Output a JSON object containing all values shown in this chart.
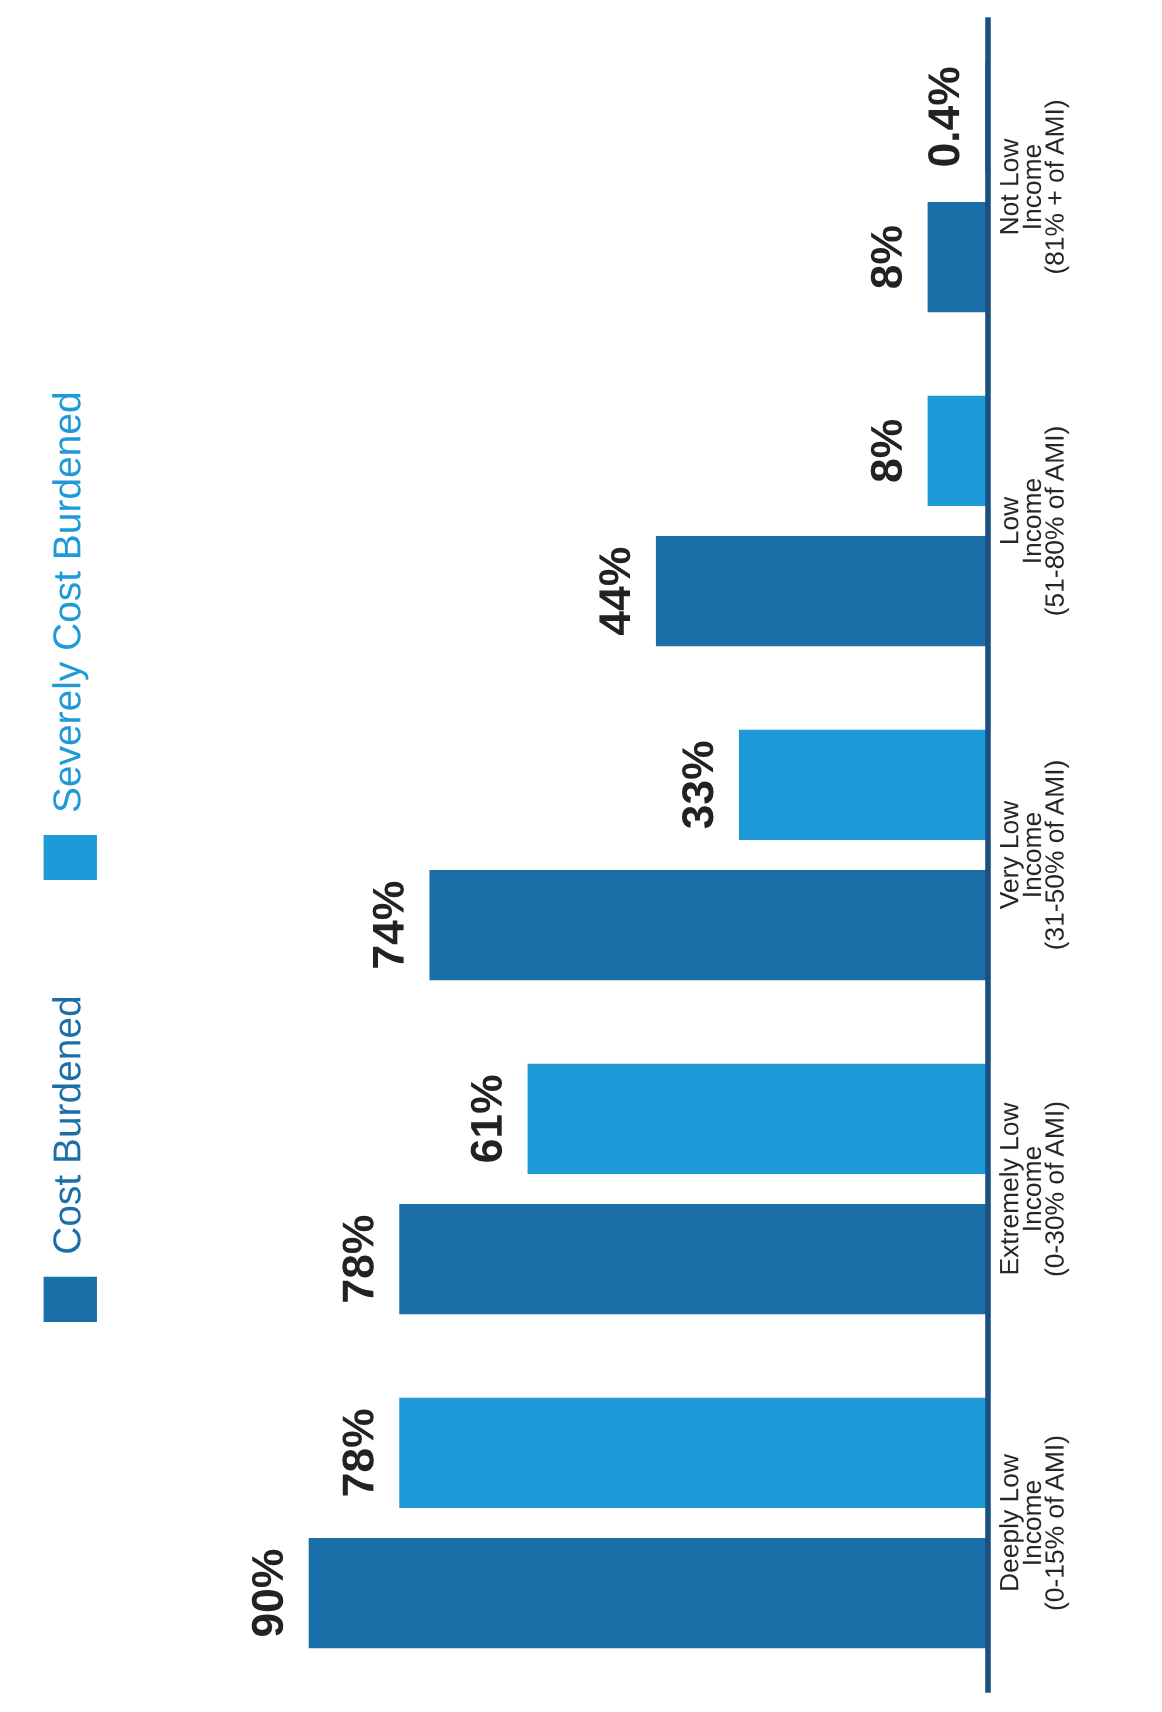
{
  "chart_data": {
    "type": "bar",
    "orientation": "horizontal",
    "legend": "left",
    "categories": [
      "Not Low\nIncome\n(81% + of AMI)",
      "Low\nIncome\n(51-80% of AMI)",
      "Very Low\nIncome\n(31-50% of AMI)",
      "Extremely Low\nIncome\n(0-30% of AMI)",
      "Deeply Low\nIncome\n(0-15% of AMI)"
    ],
    "series": [
      {
        "name": "Cost Burdened",
        "color": "#1b6fa8",
        "values": [
          8,
          44,
          74,
          78,
          90
        ],
        "value_labels": [
          "8%",
          "44%",
          "74%",
          "78%",
          "90%"
        ]
      },
      {
        "name": "Severely Cost Burdened",
        "color": "#1f9ad8",
        "values": [
          0.4,
          8,
          33,
          61,
          78
        ],
        "value_labels": [
          "0.4%",
          "8%",
          "33%",
          "61%",
          "78%"
        ]
      }
    ]
  }
}
